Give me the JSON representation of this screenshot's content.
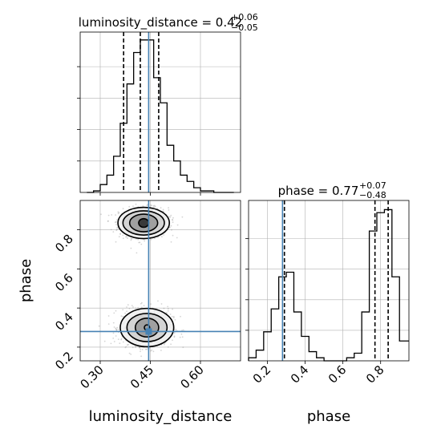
{
  "chart_data": [
    {
      "type": "histogram",
      "panel": "luminosity_distance marginal",
      "title": {
        "prefix": "luminosity_distance = 0.42",
        "sup": "+0.06",
        "sub": "−0.05"
      },
      "xlim": [
        0.24,
        0.72
      ],
      "ylim": [
        0,
        1.02
      ],
      "bin_edges": [
        0.26,
        0.28,
        0.3,
        0.32,
        0.34,
        0.36,
        0.38,
        0.4,
        0.42,
        0.44,
        0.46,
        0.48,
        0.5,
        0.52,
        0.54,
        0.56,
        0.58,
        0.6,
        0.62,
        0.64,
        0.66,
        0.68,
        0.7
      ],
      "heights": [
        0.0,
        0.01,
        0.05,
        0.11,
        0.23,
        0.44,
        0.69,
        0.89,
        0.97,
        0.97,
        0.73,
        0.57,
        0.3,
        0.2,
        0.11,
        0.07,
        0.03,
        0.01,
        0.01,
        0.0,
        0.0,
        0.0
      ],
      "quantiles": [
        0.37,
        0.42,
        0.475
      ],
      "truth": 0.445,
      "xticks": [
        0.3,
        0.45,
        0.6
      ],
      "yticks_visible_labels": false,
      "grid": true
    },
    {
      "type": "histogram",
      "panel": "phase marginal",
      "title": {
        "prefix": "phase = 0.77",
        "sup": "+0.07",
        "sub": "−0.48"
      },
      "xlim": [
        0.1,
        0.95
      ],
      "ylim": [
        0,
        1.05
      ],
      "bin_edges": [
        0.1,
        0.14,
        0.18,
        0.22,
        0.26,
        0.3,
        0.34,
        0.38,
        0.42,
        0.46,
        0.5,
        0.54,
        0.58,
        0.62,
        0.66,
        0.7,
        0.74,
        0.78,
        0.82,
        0.86,
        0.9,
        0.95
      ],
      "heights": [
        0.02,
        0.07,
        0.19,
        0.34,
        0.55,
        0.58,
        0.32,
        0.16,
        0.06,
        0.02,
        0.0,
        0.0,
        0.0,
        0.02,
        0.05,
        0.32,
        0.85,
        0.97,
        0.99,
        0.55,
        0.13
      ],
      "quantiles": [
        0.29,
        0.77,
        0.84
      ],
      "truth": 0.28,
      "xlabel": "phase",
      "xticks": [
        0.2,
        0.4,
        0.6,
        0.8
      ],
      "grid": true
    },
    {
      "type": "scatter",
      "panel": "joint luminosity_distance vs phase",
      "xlabel": "luminosity_distance",
      "ylabel": "phase",
      "xlim": [
        0.24,
        0.72
      ],
      "ylim": [
        0.13,
        0.95
      ],
      "xticks": [
        0.3,
        0.45,
        0.6
      ],
      "yticks": [
        0.2,
        0.4,
        0.6,
        0.8
      ],
      "truth": {
        "x": 0.445,
        "y": 0.28
      },
      "modes": [
        {
          "center_x": 0.43,
          "center_y": 0.835,
          "contour_levels": [
            {
              "rx": 0.015,
              "ry": 0.022
            },
            {
              "rx": 0.042,
              "ry": 0.045
            },
            {
              "rx": 0.062,
              "ry": 0.062
            },
            {
              "rx": 0.077,
              "ry": 0.08
            }
          ]
        },
        {
          "center_x": 0.44,
          "center_y": 0.3,
          "contour_levels": [
            {
              "rx": 0.008,
              "ry": 0.014
            },
            {
              "rx": 0.035,
              "ry": 0.048
            },
            {
              "rx": 0.06,
              "ry": 0.072
            },
            {
              "rx": 0.08,
              "ry": 0.098
            }
          ]
        }
      ],
      "grid": true
    }
  ],
  "colors": {
    "truth_line": "#4682b4",
    "histogram": "#000000",
    "grid": "#b0b0b0",
    "contour": "#000000",
    "sample_points": "#888888"
  }
}
